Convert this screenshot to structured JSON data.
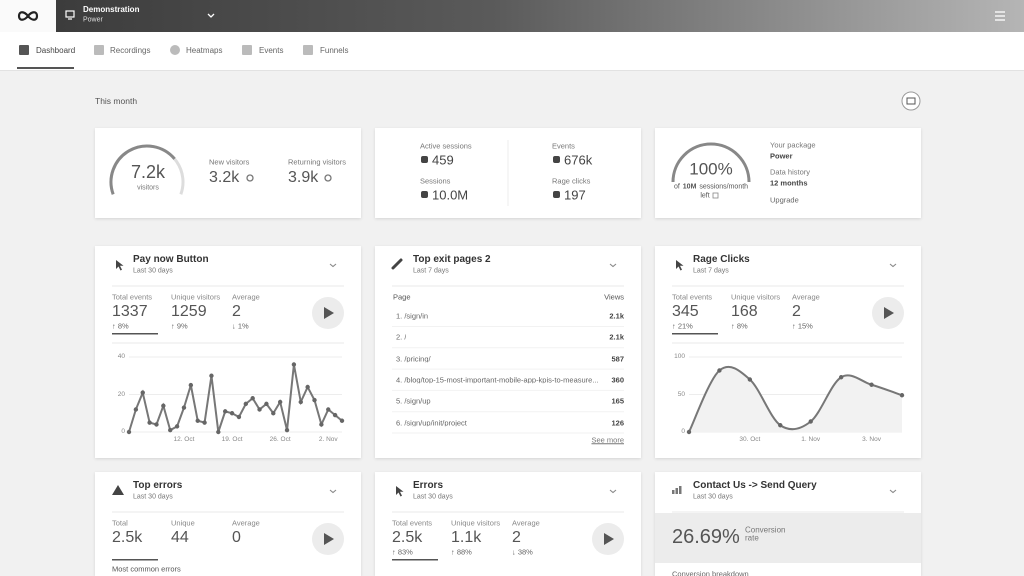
{
  "header": {
    "account": "Demonstration",
    "plan": "Power"
  },
  "nav": {
    "tabs": [
      "Dashboard",
      "Recordings",
      "Heatmaps",
      "Events",
      "Funnels"
    ],
    "active": 0
  },
  "period": "This month",
  "visitors": {
    "total": "7.2k",
    "total_caption": "visitors",
    "new_label": "New visitors",
    "new_value": "3.2k",
    "returning_label": "Returning visitors",
    "returning_value": "3.9k"
  },
  "activity": [
    {
      "label": "Active sessions",
      "value": "459"
    },
    {
      "label": "Sessions",
      "value": "10.0M"
    },
    {
      "label": "Events",
      "value": "676k"
    },
    {
      "label": "Rage clicks",
      "value": "197"
    }
  ],
  "package": {
    "percent": "100%",
    "note_before": "of",
    "note_bold": "10M",
    "note_after": "sessions/month",
    "note_end": "left",
    "details": [
      {
        "label": "Your package",
        "value": "Power"
      },
      {
        "label": "Data history",
        "value": "12 months"
      }
    ],
    "upgrade": "Upgrade"
  },
  "widgets": [
    {
      "title": "Pay now Button",
      "subtitle": "Last 30 days",
      "stats": [
        {
          "label": "Total events",
          "value": "1337",
          "change": "↑ 8%"
        },
        {
          "label": "Unique visitors",
          "value": "1259",
          "change": "↑ 9%"
        },
        {
          "label": "Average",
          "value": "2",
          "change": "↓ 1%"
        }
      ],
      "chart": {
        "type": "line",
        "smooth": false,
        "color": "#777",
        "ylim": [
          0,
          40
        ],
        "yticks": [
          0,
          20,
          40
        ],
        "categories": [
          null,
          null,
          null,
          null,
          null,
          null,
          null,
          null,
          "12. Oct",
          null,
          null,
          null,
          null,
          null,
          null,
          "19. Oct",
          null,
          null,
          null,
          null,
          null,
          null,
          "26. Oct",
          null,
          null,
          null,
          null,
          null,
          null,
          "2. Nov",
          null,
          null
        ],
        "values": [
          0,
          12,
          21,
          5,
          4,
          14,
          1,
          3,
          13,
          25,
          6,
          5,
          30,
          0,
          11,
          10,
          8,
          15,
          18,
          12,
          15,
          10,
          16,
          1,
          36,
          16,
          24,
          17,
          4,
          12,
          9,
          6
        ]
      }
    },
    {
      "title": "Top exit pages 2",
      "subtitle": "Last 7 days",
      "table": {
        "columns": [
          "Page",
          "Views"
        ],
        "rows": [
          [
            "1. /sign/in",
            "2.1k"
          ],
          [
            "2. /",
            "2.1k"
          ],
          [
            "3. /pricing/",
            "587"
          ],
          [
            "4. /blog/top-15-most-important-mobile-app-kpis-to-measure...",
            "360"
          ],
          [
            "5. /sign/up",
            "165"
          ],
          [
            "6. /sign/up/init/project",
            "126"
          ]
        ]
      },
      "more": "See more"
    },
    {
      "title": "Rage Clicks",
      "subtitle": "Last 7 days",
      "stats": [
        {
          "label": "Total events",
          "value": "345",
          "change": "↑ 21%"
        },
        {
          "label": "Unique visitors",
          "value": "168",
          "change": "↑ 8%"
        },
        {
          "label": "Average",
          "value": "2",
          "change": "↑ 15%"
        }
      ],
      "chart": {
        "type": "line",
        "smooth": true,
        "color": "#777",
        "ylim": [
          0,
          100
        ],
        "yticks": [
          0,
          50,
          100
        ],
        "categories": [
          null,
          null,
          "30. Oct",
          null,
          "1. Nov",
          null,
          "3. Nov",
          null
        ],
        "values": [
          0,
          82,
          70,
          9,
          14,
          73,
          63,
          49
        ]
      }
    },
    {
      "title": "Top errors",
      "subtitle": "Last 30 days",
      "stats": [
        {
          "label": "Total",
          "value": "2.5k"
        },
        {
          "label": "Unique",
          "value": "44"
        },
        {
          "label": "Average",
          "value": "0"
        }
      ],
      "section": "Most common errors"
    },
    {
      "title": "Errors",
      "subtitle": "Last 30 days",
      "stats": [
        {
          "label": "Total events",
          "value": "2.5k",
          "change": "↑ 83%"
        },
        {
          "label": "Unique visitors",
          "value": "1.1k",
          "change": "↑ 88%"
        },
        {
          "label": "Average",
          "value": "2",
          "change": "↓ 38%"
        }
      ]
    },
    {
      "title": "Contact Us -> Send Query",
      "subtitle": "Last 30 days",
      "conversion": {
        "value": "26.69%",
        "label": "Conversion rate"
      },
      "section": "Conversion breakdown"
    }
  ]
}
